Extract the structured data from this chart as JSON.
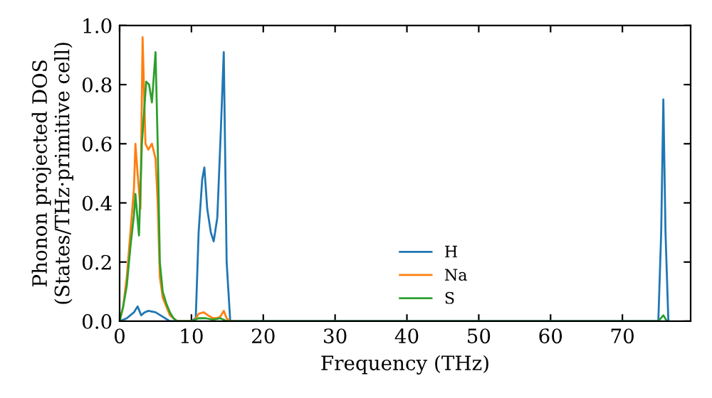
{
  "chart_data": {
    "type": "line",
    "xlabel": "Frequency (THz)",
    "ylabel": "Phonon projected DOS\n(States/THz·primitive cell)",
    "xlim": [
      0,
      79.5
    ],
    "ylim": [
      0,
      1.0
    ],
    "xticks": [
      0,
      10,
      20,
      30,
      40,
      50,
      60,
      70
    ],
    "yticks": [
      {
        "value": 0,
        "label": "0.0"
      },
      0.2,
      0.4,
      0.6,
      0.8,
      {
        "value": 1,
        "label": "1.0"
      }
    ],
    "legend": "bottom",
    "grid": false,
    "series": [
      {
        "name": "H",
        "color": "#1f77b4",
        "x": [
          0,
          1,
          2,
          2.5,
          3,
          3.5,
          4,
          5,
          6,
          7,
          8,
          10,
          10.6,
          11,
          11.5,
          11.8,
          12.2,
          12.7,
          13.1,
          13.6,
          14.1,
          14.5,
          14.9,
          15.4,
          16,
          75,
          75.4,
          75.7,
          76,
          76.4
        ],
        "values": [
          0,
          0.01,
          0.03,
          0.05,
          0.02,
          0.03,
          0.035,
          0.03,
          0.015,
          0.0,
          0,
          0,
          0.01,
          0.3,
          0.48,
          0.52,
          0.38,
          0.3,
          0.27,
          0.35,
          0.65,
          0.91,
          0.2,
          0,
          0,
          0,
          0.3,
          0.75,
          0.3,
          0
        ]
      },
      {
        "name": "Na",
        "color": "#ff7f0e",
        "x": [
          0,
          0.5,
          1,
          1.5,
          2,
          2.2,
          2.5,
          2.9,
          3.2,
          3.6,
          4,
          4.5,
          5,
          5.3,
          5.6,
          6,
          6.5,
          7,
          8,
          10,
          10.5,
          11,
          11.7,
          12.3,
          13,
          13.5,
          14,
          14.5,
          14.9,
          15.4,
          16
        ],
        "values": [
          0,
          0.05,
          0.15,
          0.3,
          0.45,
          0.6,
          0.5,
          0.38,
          0.96,
          0.6,
          0.58,
          0.6,
          0.55,
          0.4,
          0.15,
          0.08,
          0.05,
          0.02,
          0,
          0,
          0.005,
          0.025,
          0.03,
          0.02,
          0.01,
          0.01,
          0.015,
          0.035,
          0.01,
          0,
          0
        ]
      },
      {
        "name": "S",
        "color": "#2ca02c",
        "x": [
          0,
          0.5,
          1,
          1.5,
          2,
          2.2,
          2.7,
          3.1,
          3.7,
          4.1,
          4.5,
          5,
          5.3,
          5.6,
          6,
          6.5,
          7,
          7.5,
          8,
          10,
          11,
          12,
          13,
          14,
          15,
          75,
          75.7,
          76.2
        ],
        "values": [
          0,
          0.05,
          0.12,
          0.25,
          0.36,
          0.43,
          0.29,
          0.6,
          0.81,
          0.8,
          0.74,
          0.91,
          0.6,
          0.2,
          0.1,
          0.06,
          0.03,
          0.01,
          0,
          0,
          0.01,
          0.01,
          0.005,
          0.01,
          0,
          0,
          0.02,
          0
        ]
      }
    ]
  }
}
